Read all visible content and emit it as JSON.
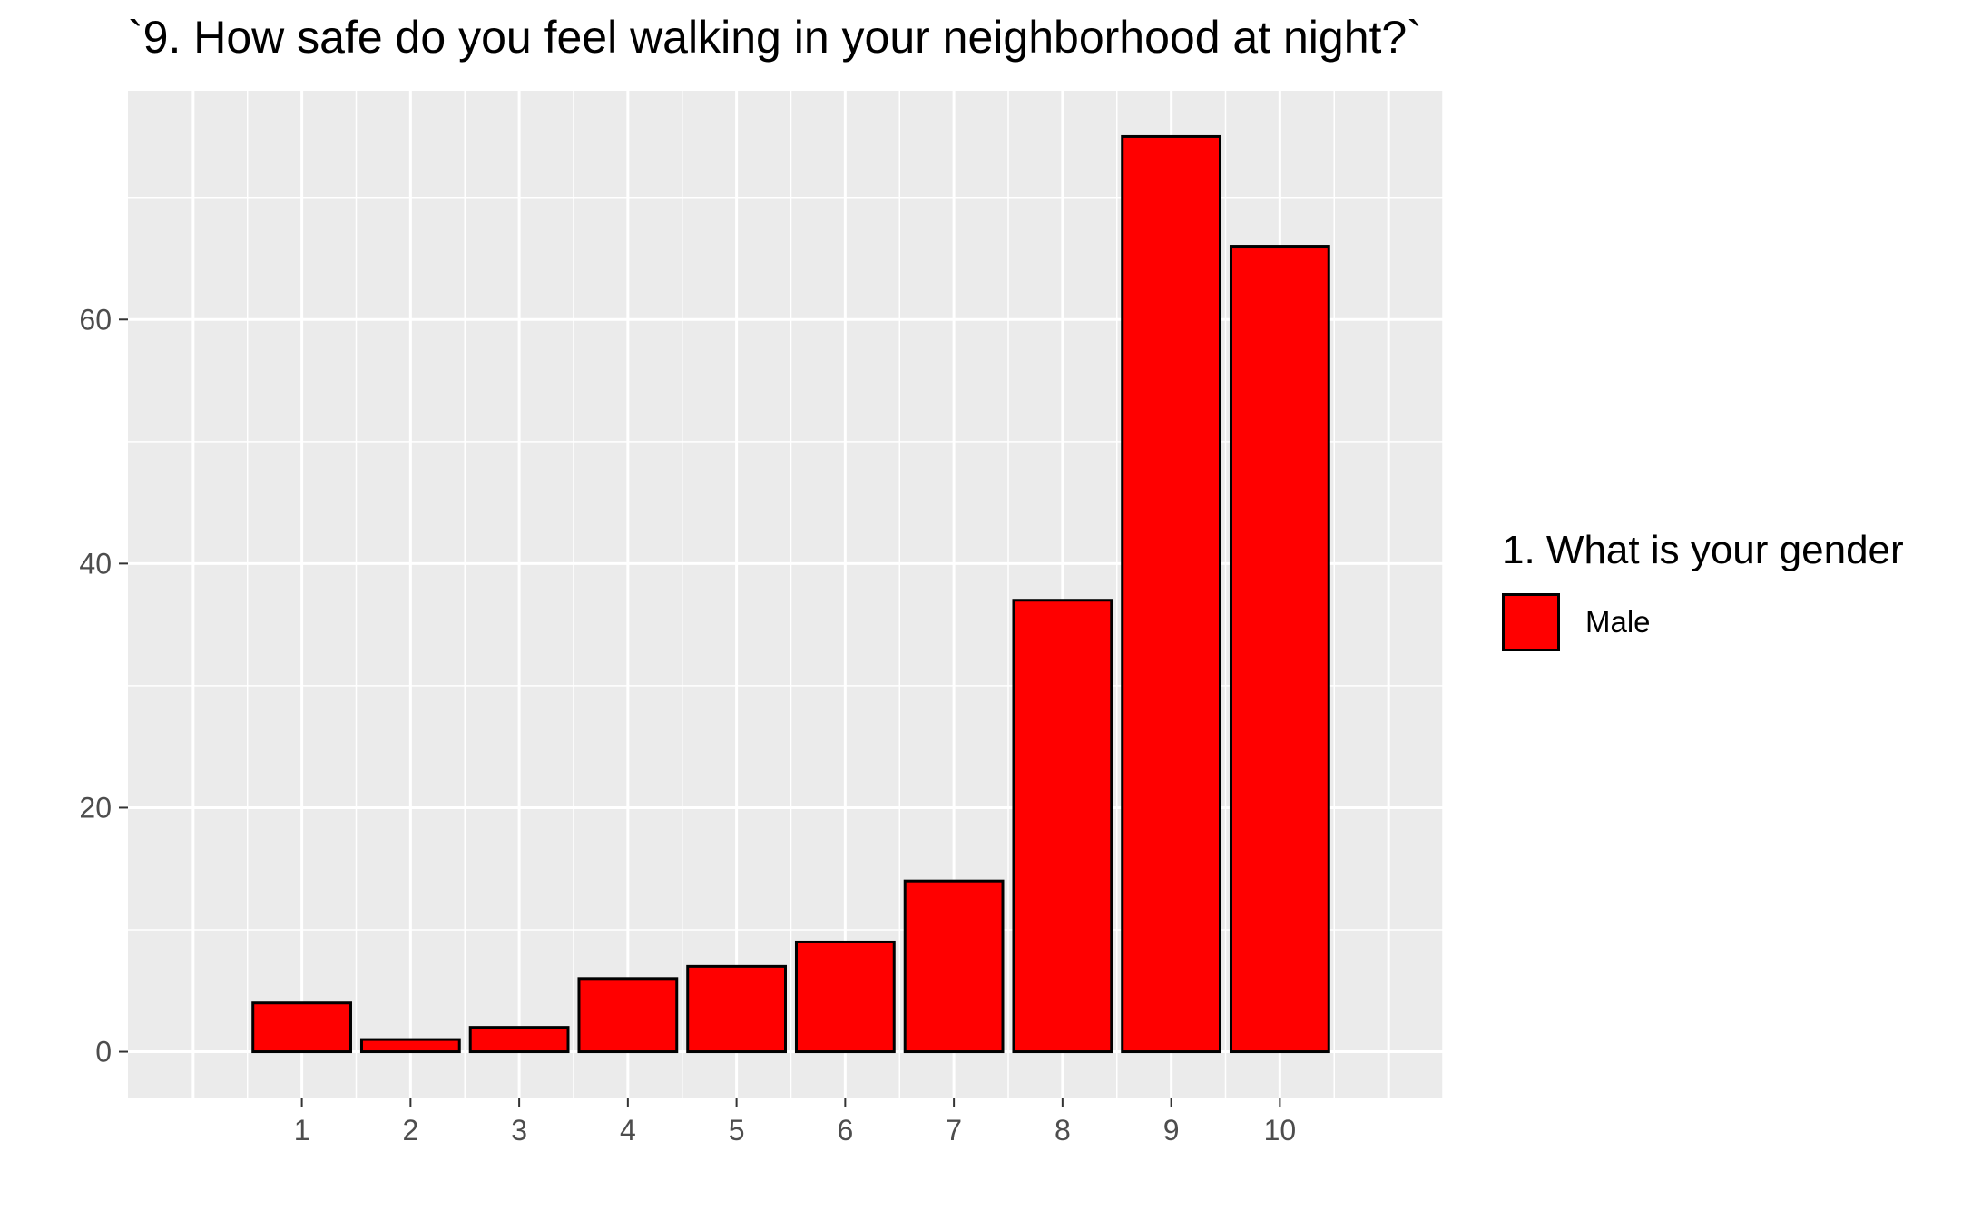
{
  "chart_data": {
    "type": "bar",
    "title": "`9. How safe do you feel walking in your neighborhood at night?`",
    "xlabel": "",
    "ylabel": "",
    "categories": [
      "1",
      "2",
      "3",
      "4",
      "5",
      "6",
      "7",
      "8",
      "9",
      "10"
    ],
    "series": [
      {
        "name": "Male",
        "values": [
          4,
          1,
          2,
          6,
          7,
          9,
          14,
          37,
          75,
          66
        ]
      }
    ],
    "yticks": [
      0,
      20,
      40,
      60
    ],
    "ylim": [
      -3.75,
      78.75
    ],
    "grid": true,
    "legend": {
      "title": "1. What is your gender",
      "position": "right"
    },
    "colors": {
      "bar_fill": "#ff0000",
      "bar_outline": "#000000",
      "panel_background": "#ebebeb",
      "grid": "#ffffff",
      "tick_text": "#4d4d4d"
    }
  }
}
